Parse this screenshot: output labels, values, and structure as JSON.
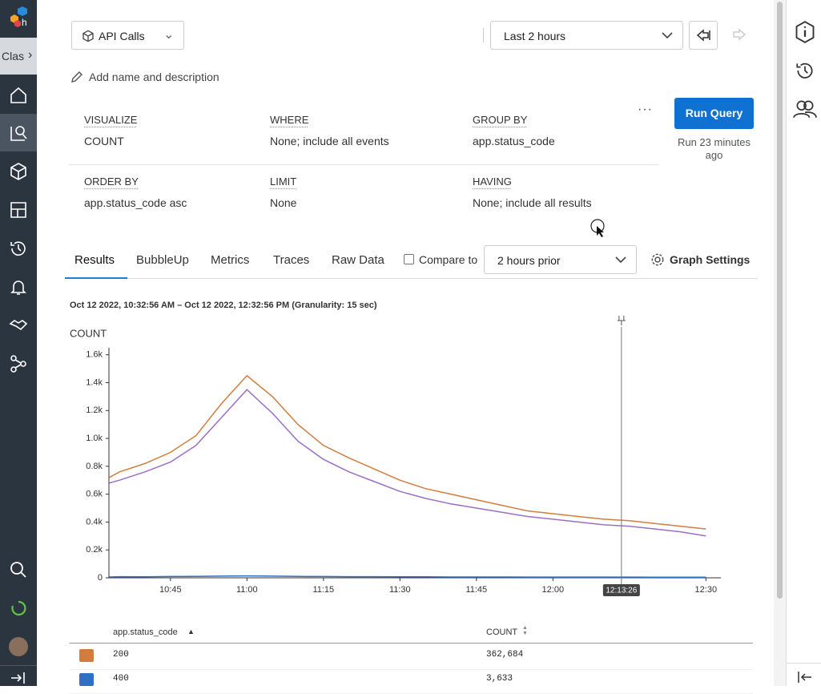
{
  "sidebar": {
    "cluster": "Clas"
  },
  "header": {
    "dataset": "API Calls",
    "time_range": "Last 2 hours",
    "add_name": "Add name and description"
  },
  "query": {
    "fields": [
      {
        "label": "VISUALIZE",
        "value": "COUNT"
      },
      {
        "label": "WHERE",
        "value": "None; include all events"
      },
      {
        "label": "GROUP BY",
        "value": "app.status_code"
      },
      {
        "label": "ORDER BY",
        "value": "app.status_code asc"
      },
      {
        "label": "LIMIT",
        "value": "None"
      },
      {
        "label": "HAVING",
        "value": "None; include all results"
      }
    ],
    "run_button": "Run Query",
    "run_status": "Run 23 minutes ago"
  },
  "tabs": [
    "Results",
    "BubbleUp",
    "Metrics",
    "Traces",
    "Raw Data"
  ],
  "compare": {
    "label": "Compare to",
    "value": "2 hours prior",
    "settings": "Graph Settings"
  },
  "chart_data": {
    "type": "line",
    "title": "Oct 12 2022, 10:32:56 AM – Oct 12 2022, 12:32:56 PM (Granularity: 15 sec)",
    "ylabel": "COUNT",
    "x": [
      "10:33",
      "10:35",
      "10:40",
      "10:45",
      "10:50",
      "10:55",
      "11:00",
      "11:05",
      "11:10",
      "11:15",
      "11:20",
      "11:25",
      "11:30",
      "11:35",
      "11:40",
      "11:45",
      "11:50",
      "11:55",
      "12:00",
      "12:05",
      "12:10",
      "12:15",
      "12:20",
      "12:25",
      "12:30"
    ],
    "series": [
      {
        "name": "200",
        "color": "#d27d3f",
        "values": [
          720,
          760,
          820,
          900,
          1020,
          1250,
          1450,
          1300,
          1100,
          950,
          860,
          780,
          700,
          640,
          600,
          560,
          520,
          480,
          460,
          440,
          420,
          410,
          390,
          370,
          350
        ]
      },
      {
        "color": "#9b6fc4",
        "values": [
          680,
          700,
          760,
          830,
          950,
          1150,
          1350,
          1180,
          980,
          850,
          760,
          690,
          620,
          570,
          530,
          500,
          470,
          440,
          420,
          400,
          380,
          370,
          350,
          330,
          300
        ]
      },
      {
        "name": "400",
        "color": "#2f6fc4",
        "values": [
          6,
          8,
          7,
          9,
          10,
          12,
          14,
          12,
          10,
          9,
          8,
          8,
          7,
          7,
          6,
          6,
          6,
          5,
          5,
          5,
          5,
          5,
          4,
          4,
          4
        ]
      }
    ],
    "xlim": [
      "10:32:56",
      "12:32:56"
    ],
    "xticks": [
      "10:45",
      "11:00",
      "11:15",
      "11:30",
      "11:45",
      "12:00",
      "12:30"
    ],
    "ylim": [
      0,
      1650
    ],
    "yticks": [
      0,
      {
        "value": 200,
        "label": "0.2k"
      },
      {
        "value": 400,
        "label": "0.4k"
      },
      {
        "value": 600,
        "label": "0.6k"
      },
      {
        "value": 800,
        "label": "0.8k"
      },
      {
        "value": 1000,
        "label": "1.0k"
      },
      {
        "value": 1200,
        "label": "1.2k"
      },
      {
        "value": 1400,
        "label": "1.4k"
      },
      {
        "value": 1600,
        "label": "1.6k"
      }
    ],
    "marker_x": "12:13:26"
  },
  "table": {
    "headers": [
      "app.status_code",
      "COUNT"
    ],
    "rows": [
      {
        "color": "#d27d3f",
        "label": "200",
        "count": "362,684"
      },
      {
        "color": "#2f6fc4",
        "label": "400",
        "count": "3,633"
      }
    ]
  }
}
